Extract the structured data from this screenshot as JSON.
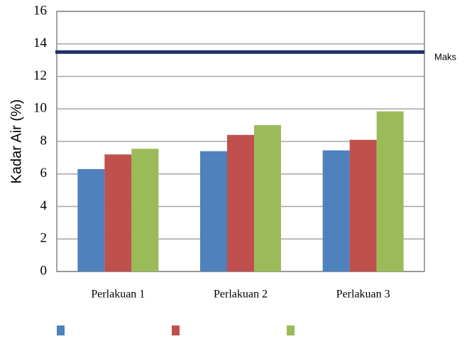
{
  "chart_data": {
    "type": "bar",
    "y_label": "Kadar Air (%)",
    "categories": [
      "Perlakuan 1",
      "Perlakuan 2",
      "Perlakuan 3"
    ],
    "series": [
      {
        "color": "#4f81bd",
        "values": [
          6.3,
          7.4,
          7.45
        ]
      },
      {
        "color": "#c0504d",
        "values": [
          7.2,
          8.4,
          8.1
        ]
      },
      {
        "color": "#9bbb59",
        "values": [
          7.55,
          9.0,
          9.85
        ]
      }
    ],
    "reference_line": {
      "label": "Maks",
      "value": 13.5,
      "color": "#1f2f6b"
    },
    "ylim": [
      0,
      16
    ],
    "yticks": [
      0,
      2,
      4,
      6,
      8,
      10,
      12,
      14,
      16
    ],
    "grid": true
  }
}
